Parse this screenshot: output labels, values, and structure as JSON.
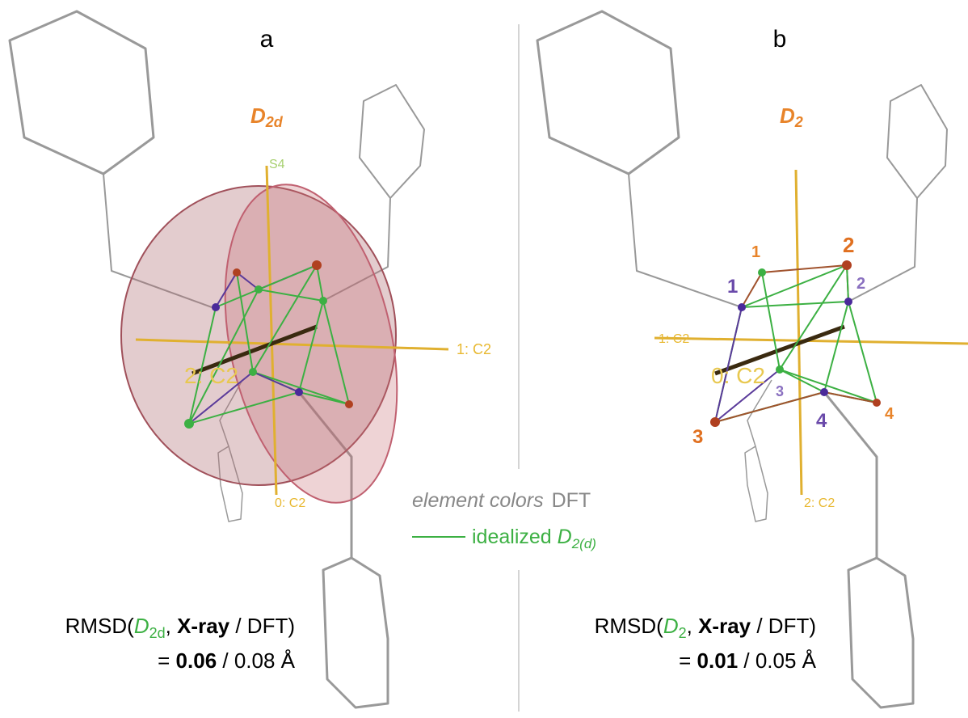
{
  "panels": [
    {
      "label": "a",
      "point_group": {
        "symbol": "D",
        "subscript": "2d"
      },
      "axis_labels": [
        "S4",
        "1: C2",
        "2: C2",
        "0: C2"
      ],
      "rmsd": {
        "prefix": "RMSD(",
        "group": "D",
        "group_sub": "2d",
        "sep": ", ",
        "xray": "X-ray",
        "rest": " / DFT)",
        "equals": "= ",
        "xray_value": "0.06",
        "dft_value": " / 0.08 Å"
      }
    },
    {
      "label": "b",
      "point_group": {
        "symbol": "D",
        "subscript": "2"
      },
      "axis_labels": [
        "1: C2",
        "0: C2",
        "2: C2"
      ],
      "atom_labels": {
        "orange": [
          "1",
          "2",
          "3",
          "4"
        ],
        "purple": [
          "1",
          "2",
          "3",
          "4"
        ]
      },
      "rmsd": {
        "prefix": "RMSD(",
        "group": "D",
        "group_sub": "2",
        "sep": ", ",
        "xray": "X-ray",
        "rest": " / DFT)",
        "equals": "= ",
        "xray_value": "0.01",
        "dft_value": " / 0.05 Å"
      }
    }
  ],
  "legend": {
    "element": "element colors",
    "dft": "DFT",
    "idealized": "idealized ",
    "ideal_symbol": "D",
    "ideal_sub": "2(d)"
  }
}
